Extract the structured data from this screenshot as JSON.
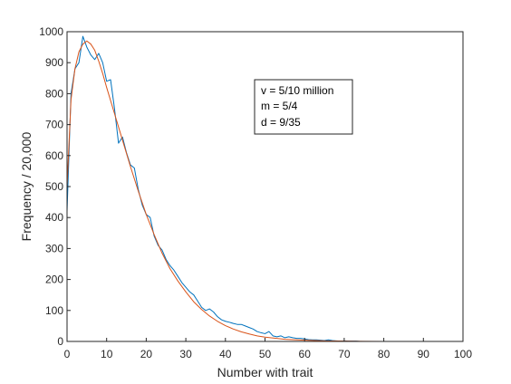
{
  "chart_data": {
    "type": "line",
    "title": "",
    "xlabel": "Number with trait",
    "ylabel": "Frequency / 20,000",
    "xlim": [
      0,
      100
    ],
    "ylim": [
      0,
      1000
    ],
    "xticks": [
      0,
      10,
      20,
      30,
      40,
      50,
      60,
      70,
      80,
      90,
      100
    ],
    "yticks": [
      0,
      100,
      200,
      300,
      400,
      500,
      600,
      700,
      800,
      900,
      1000
    ],
    "grid": false,
    "legend": "none",
    "annotation": [
      "v = 5/10 million",
      "m = 5/4",
      "d = 9/35"
    ],
    "series": [
      {
        "color": "#0072BD",
        "x": [
          0,
          1,
          2,
          3,
          4,
          5,
          6,
          7,
          8,
          9,
          10,
          11,
          12,
          13,
          14,
          15,
          16,
          17,
          18,
          19,
          20,
          21,
          22,
          23,
          24,
          25,
          26,
          27,
          28,
          29,
          30,
          31,
          32,
          33,
          34,
          35,
          36,
          37,
          38,
          39,
          40,
          41,
          42,
          43,
          44,
          45,
          46,
          47,
          48,
          49,
          50,
          51,
          52,
          53,
          54,
          55,
          56,
          57,
          58,
          59,
          60,
          61,
          62,
          63,
          64,
          65,
          66,
          67,
          68,
          69,
          70,
          71,
          72,
          73,
          74,
          75,
          80,
          85,
          90,
          95,
          100
        ],
        "y": [
          420,
          800,
          880,
          900,
          985,
          950,
          925,
          910,
          930,
          900,
          840,
          845,
          750,
          640,
          660,
          610,
          570,
          560,
          490,
          440,
          410,
          400,
          340,
          310,
          295,
          265,
          245,
          230,
          210,
          190,
          175,
          160,
          150,
          130,
          110,
          100,
          105,
          95,
          80,
          70,
          65,
          62,
          58,
          55,
          55,
          50,
          45,
          40,
          32,
          28,
          25,
          32,
          18,
          15,
          18,
          12,
          15,
          12,
          10,
          10,
          8,
          6,
          5,
          5,
          4,
          3,
          5,
          3,
          2,
          1,
          2,
          1,
          1,
          1,
          0,
          0,
          0,
          0,
          0,
          0,
          0
        ]
      },
      {
        "color": "#D95319",
        "x": [
          0,
          1,
          2,
          3,
          4,
          5,
          6,
          7,
          8,
          9,
          10,
          12,
          14,
          16,
          18,
          20,
          22,
          24,
          26,
          28,
          30,
          32,
          34,
          36,
          38,
          40,
          42,
          44,
          46,
          48,
          50,
          55,
          60,
          65,
          70,
          75,
          80,
          85,
          90,
          95,
          100
        ],
        "y": [
          500,
          780,
          880,
          935,
          960,
          970,
          960,
          940,
          905,
          865,
          820,
          735,
          650,
          565,
          485,
          410,
          345,
          285,
          235,
          195,
          160,
          128,
          103,
          82,
          65,
          51,
          40,
          31,
          24,
          18,
          14,
          7,
          4,
          2,
          1,
          0.5,
          0,
          0,
          0,
          0,
          0
        ]
      }
    ]
  }
}
